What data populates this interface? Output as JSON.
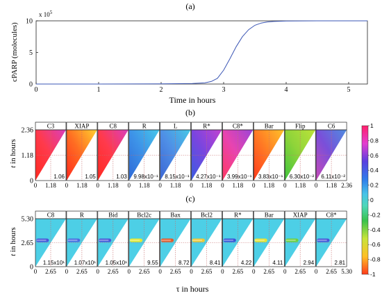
{
  "chart_data": [
    {
      "type": "line",
      "panel_label": "(a)",
      "ylabel": "cPARP (molecules)",
      "xlabel": "Time in hours",
      "y_multiplier": "x 10",
      "y_multiplier_exp": "5",
      "xlim": [
        0,
        5.3
      ],
      "ylim": [
        0,
        10
      ],
      "x_ticks": [
        "0",
        "1",
        "2",
        "3",
        "4",
        "5"
      ],
      "y_ticks": [
        "0",
        "5",
        "10"
      ],
      "series": [
        {
          "color": "#3a55b4",
          "x": [
            0,
            1,
            2,
            2.5,
            2.7,
            2.8,
            2.9,
            3.0,
            3.1,
            3.2,
            3.3,
            3.4,
            3.5,
            3.6,
            3.7,
            3.8,
            4.0,
            4.5,
            5.0,
            5.3
          ],
          "y": [
            0,
            0,
            0.02,
            0.08,
            0.2,
            0.4,
            0.9,
            2.2,
            4.0,
            5.9,
            7.5,
            8.6,
            9.3,
            9.65,
            9.82,
            9.9,
            9.97,
            10,
            10,
            10
          ]
        }
      ]
    },
    {
      "type": "heatmap",
      "panel_label": "(b)",
      "ylabel_symbol": "t",
      "ylabel_rest": " in hours",
      "y_ticks": [
        "0",
        "1.18",
        "2.36"
      ],
      "x_ticks": [
        "0",
        "1.18"
      ],
      "x_end_tick": "2.36",
      "max_time": 2.36,
      "panels": [
        {
          "name": "C3",
          "value": "1.06"
        },
        {
          "name": "XIAP",
          "value": "1.05"
        },
        {
          "name": "C8",
          "value": "1.03"
        },
        {
          "name": "R",
          "value": "9.98x10⁻¹"
        },
        {
          "name": "L",
          "value": "8.15x10⁻¹"
        },
        {
          "name": "R*",
          "value": "4.27x10⁻¹"
        },
        {
          "name": "C8*",
          "value": "3.99x10⁻¹"
        },
        {
          "name": "Bar",
          "value": "3.83x10⁻¹"
        },
        {
          "name": "Flip",
          "value": "6.30x10⁻²"
        },
        {
          "name": "C6",
          "value": "6.11x10⁻²"
        }
      ]
    },
    {
      "type": "heatmap",
      "panel_label": "(c)",
      "ylabel_symbol": "t",
      "ylabel_rest": " in hours",
      "xlabel_symbol": "τ",
      "xlabel_rest": " in hours",
      "y_ticks": [
        "0",
        "2.65",
        "5.30"
      ],
      "x_ticks": [
        "0",
        "2.65"
      ],
      "x_end_tick": "5.30",
      "max_time": 5.3,
      "panels": [
        {
          "name": "C8",
          "value": "1.15x10¹"
        },
        {
          "name": "R",
          "value": "1.07x10¹"
        },
        {
          "name": "Bid",
          "value": "1.05x10¹"
        },
        {
          "name": "Bcl2c",
          "value": "9.55"
        },
        {
          "name": "Bax",
          "value": "8.72"
        },
        {
          "name": "Bcl2",
          "value": "8.41"
        },
        {
          "name": "R*",
          "value": "4.22"
        },
        {
          "name": "Bar",
          "value": "4.11"
        },
        {
          "name": "XIAP",
          "value": "2.94"
        },
        {
          "name": "C8*",
          "value": "2.81"
        }
      ]
    }
  ],
  "colorbar": {
    "ticks": [
      "1",
      "0.8",
      "0.6",
      "0.4",
      "0.2",
      "0",
      "-0.2",
      "-0.4",
      "-0.6",
      "-0.8",
      "-1"
    ],
    "range": [
      -1,
      1
    ]
  }
}
